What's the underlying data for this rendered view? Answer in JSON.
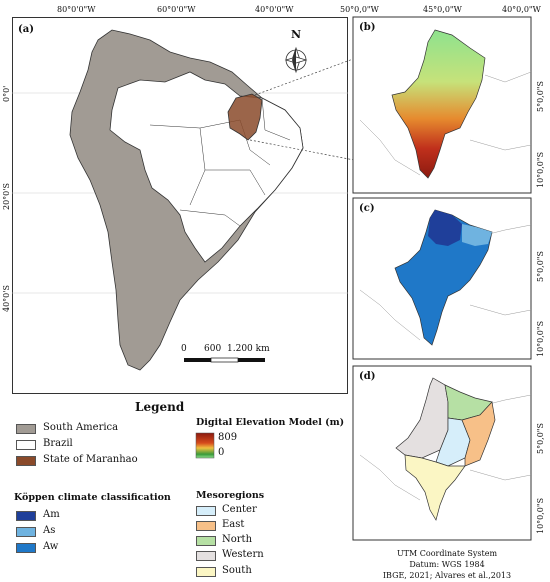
{
  "main_map": {
    "panel_label": "(a)",
    "top_ticks": [
      "80°0'0\"W",
      "60°0'0\"W",
      "40°0'0\"W"
    ],
    "left_ticks": [
      "0°0'",
      "20°0'S",
      "40°0'S"
    ],
    "north_label": "N",
    "scale_labels": [
      "0",
      "600",
      "1.200 km"
    ]
  },
  "inset_maps": {
    "top_ticks": [
      "50°0,0\"W",
      "45°0,0\"W",
      "40°0,0\"W"
    ],
    "right_ticks": [
      "5°0,0\"S",
      "10°0,0\"S"
    ],
    "panel_labels": [
      "(b)",
      "(c)",
      "(d)"
    ]
  },
  "legend": {
    "title": "Legend",
    "items": [
      {
        "label": "South America",
        "color": "#a19b94"
      },
      {
        "label": "Brazil",
        "color": "#ffffff"
      },
      {
        "label": "State of Maranhao",
        "color": "#8a4a2a"
      }
    ]
  },
  "dem_legend": {
    "title": "Digital Elevation Model (m)",
    "max": "809",
    "min": "0",
    "colors": [
      "#8b1a10",
      "#d64a1c",
      "#f0c040",
      "#3a9a3a",
      "#8ee28e"
    ]
  },
  "koppen_legend": {
    "title": "Köppen climate classification",
    "items": [
      {
        "label": "Am",
        "color": "#1f3f9a"
      },
      {
        "label": "As",
        "color": "#6fb3e0"
      },
      {
        "label": "Aw",
        "color": "#1f78c8"
      }
    ]
  },
  "meso_legend": {
    "title": "Mesoregions",
    "items": [
      {
        "label": "Center",
        "color": "#d6eefa"
      },
      {
        "label": "East",
        "color": "#f7c088"
      },
      {
        "label": "North",
        "color": "#b6e0a4"
      },
      {
        "label": "Western",
        "color": "#e4e0e0"
      },
      {
        "label": "South",
        "color": "#fbf6c4"
      }
    ]
  },
  "credits": {
    "line1": "UTM Coordinate System",
    "line2": "Datum: WGS 1984",
    "line3": "IBGE, 2021; Alvares et al.,2013"
  },
  "colors": {
    "south_america": "#a19b94",
    "brazil": "#ffffff",
    "maranhao": "#8a4a2a"
  }
}
